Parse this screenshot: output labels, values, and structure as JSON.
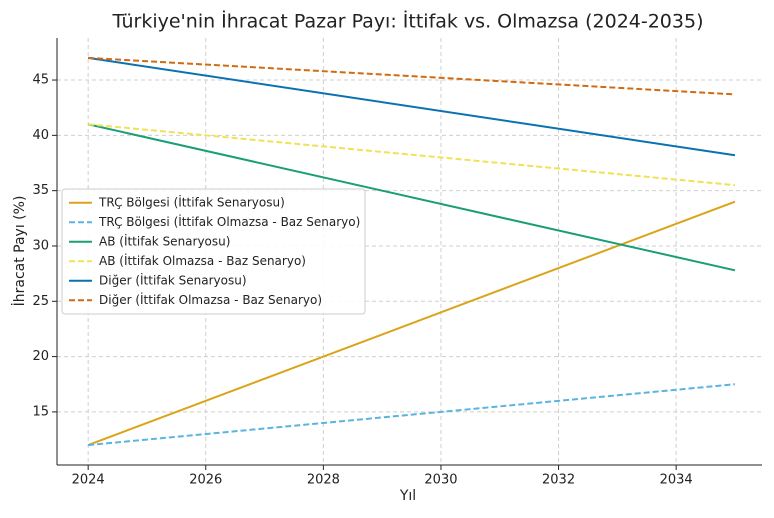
{
  "chart_data": {
    "type": "line",
    "title": "Türkiye'nin İhracat Pazar Payı: İttifak vs. Olmazsa (2024-2035)",
    "x_label": "Yıl",
    "y_label": "İhracat Payı (%)",
    "x": [
      2024,
      2035
    ],
    "series": [
      {
        "name": "TRÇ Bölgesi (İttifak Senaryosu)",
        "color": "#dba418",
        "style": "solid",
        "values": [
          12,
          34
        ]
      },
      {
        "name": "TRÇ Bölgesi (İttifak Olmazsa - Baz Senaryo)",
        "color": "#5ab4e0",
        "style": "dashed",
        "values": [
          12,
          17.5
        ]
      },
      {
        "name": "AB (İttifak Senaryosu)",
        "color": "#1a9e77",
        "style": "solid",
        "values": [
          41,
          27.8
        ]
      },
      {
        "name": "AB (İttifak Olmazsa - Baz Senaryo)",
        "color": "#efe254",
        "style": "dashed",
        "values": [
          41,
          35.5
        ]
      },
      {
        "name": "Diğer (İttifak Senaryosu)",
        "color": "#0a72b0",
        "style": "solid",
        "values": [
          47,
          38.2
        ]
      },
      {
        "name": "Diğer (İttifak Olmazsa - Baz Senaryo)",
        "color": "#d26a12",
        "style": "dashed",
        "values": [
          47,
          43.7
        ]
      }
    ],
    "xlim": [
      2023.47,
      2035.46
    ],
    "xticks": [
      2024,
      2026,
      2028,
      2030,
      2032,
      2034
    ],
    "ylim": [
      10.2,
      48.8
    ],
    "yticks": [
      15,
      20,
      25,
      30,
      35,
      40,
      45
    ],
    "grid": true,
    "legend": "center left"
  }
}
